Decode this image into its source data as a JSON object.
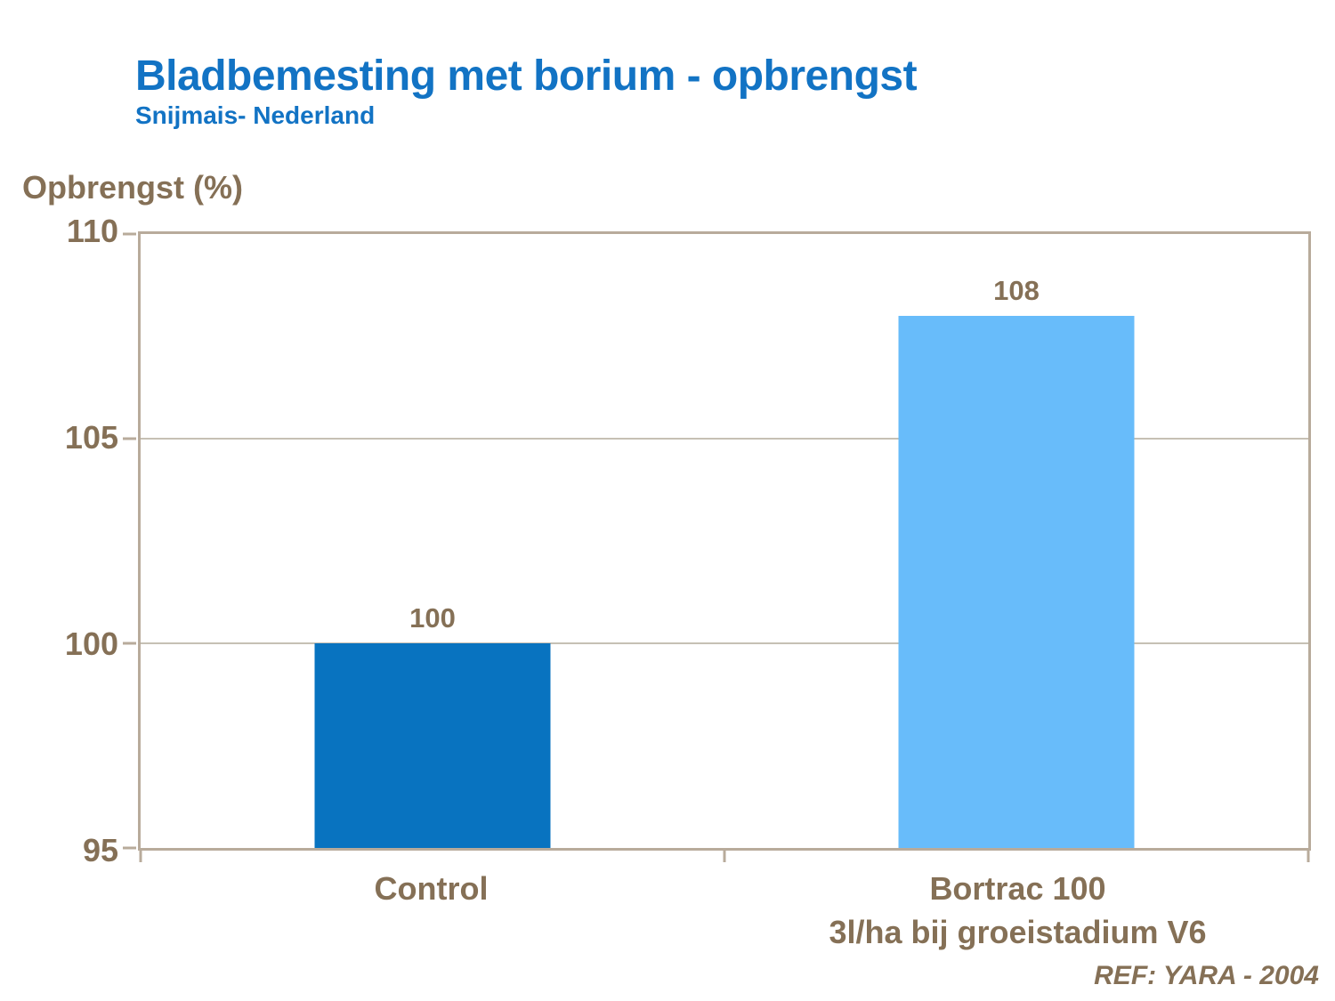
{
  "header": {
    "title": "Bladbemesting met borium - opbrengst",
    "subtitle": "Snijmais- Nederland"
  },
  "y_axis": {
    "title": "Opbrengst (%)"
  },
  "x_axis": {
    "labels": [
      {
        "line1": "Control",
        "line2": ""
      },
      {
        "line1": "Bortrac 100",
        "line2": "3l/ha bij groeistadium V6"
      }
    ]
  },
  "footer": {
    "ref": "REF: YARA - 2004"
  },
  "colors": {
    "title_blue": "#1273C4",
    "text_brown": "#857056",
    "plot_border": "#B8AB9B",
    "gridline": "#C6C0B4"
  },
  "chart_data": {
    "type": "bar",
    "title": "Bladbemesting met borium - opbrengst",
    "subtitle": "Snijmais- Nederland",
    "ylabel": "Opbrengst (%)",
    "xlabel": "",
    "categories": [
      "Control",
      "Bortrac 100 3l/ha bij groeistadium V6"
    ],
    "values": [
      100,
      108
    ],
    "value_labels": [
      "100",
      "108"
    ],
    "bar_colors": [
      "#0873C0",
      "#68BCFA"
    ],
    "ylim": [
      95,
      110
    ],
    "yticks": [
      110,
      105,
      100,
      95
    ],
    "gridlines": [
      105,
      100
    ],
    "grid": "horizontal",
    "legend_position": "none"
  }
}
